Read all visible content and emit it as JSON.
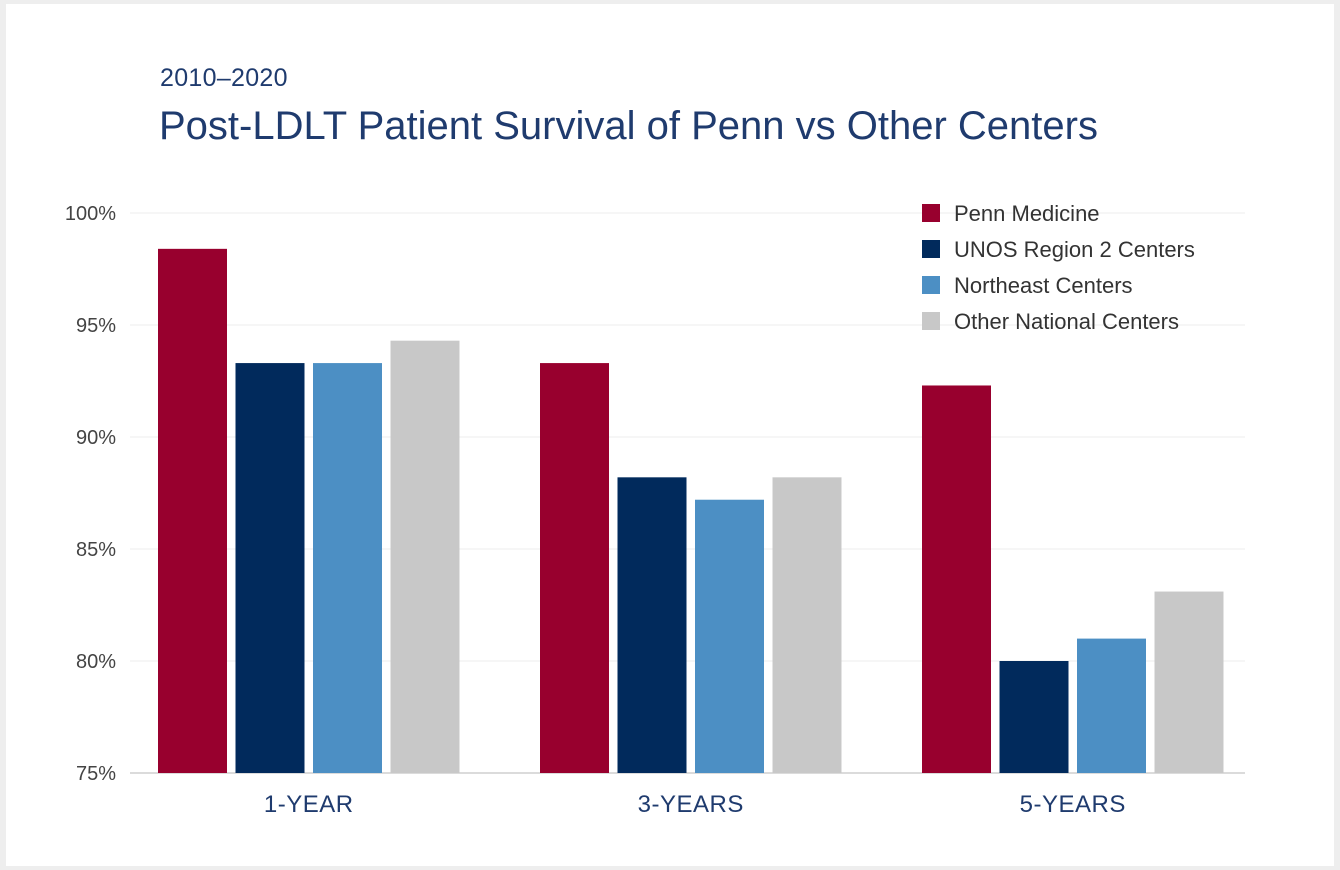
{
  "header": {
    "subtitle": "2010–2020",
    "title": "Post-LDLT Patient Survival of Penn vs Other Centers"
  },
  "chart_data": {
    "type": "bar",
    "title": "Post-LDLT Patient Survival of Penn vs Other Centers",
    "subtitle": "2010–2020",
    "categories": [
      "1-YEAR",
      "3-YEARS",
      "5-YEARS"
    ],
    "series": [
      {
        "name": "Penn Medicine",
        "color": "#98002e",
        "values": [
          98.4,
          93.3,
          92.3
        ]
      },
      {
        "name": "UNOS Region 2 Centers",
        "color": "#012a5c",
        "values": [
          93.3,
          88.2,
          80.0
        ]
      },
      {
        "name": "Northeast Centers",
        "color": "#4c8fc4",
        "values": [
          93.3,
          87.2,
          81.0
        ]
      },
      {
        "name": "Other National Centers",
        "color": "#c8c8c8",
        "values": [
          94.3,
          88.2,
          83.1
        ]
      }
    ],
    "yticks": [
      {
        "value": 75,
        "label": "75%"
      },
      {
        "value": 80,
        "label": "80%"
      },
      {
        "value": 85,
        "label": "85%"
      },
      {
        "value": 90,
        "label": "90%"
      },
      {
        "value": 95,
        "label": "95%"
      },
      {
        "value": 100,
        "label": "100%"
      }
    ],
    "ylim": [
      75,
      100
    ],
    "xlabel": "",
    "ylabel": "",
    "grid": true,
    "legend_position": "top-right"
  }
}
